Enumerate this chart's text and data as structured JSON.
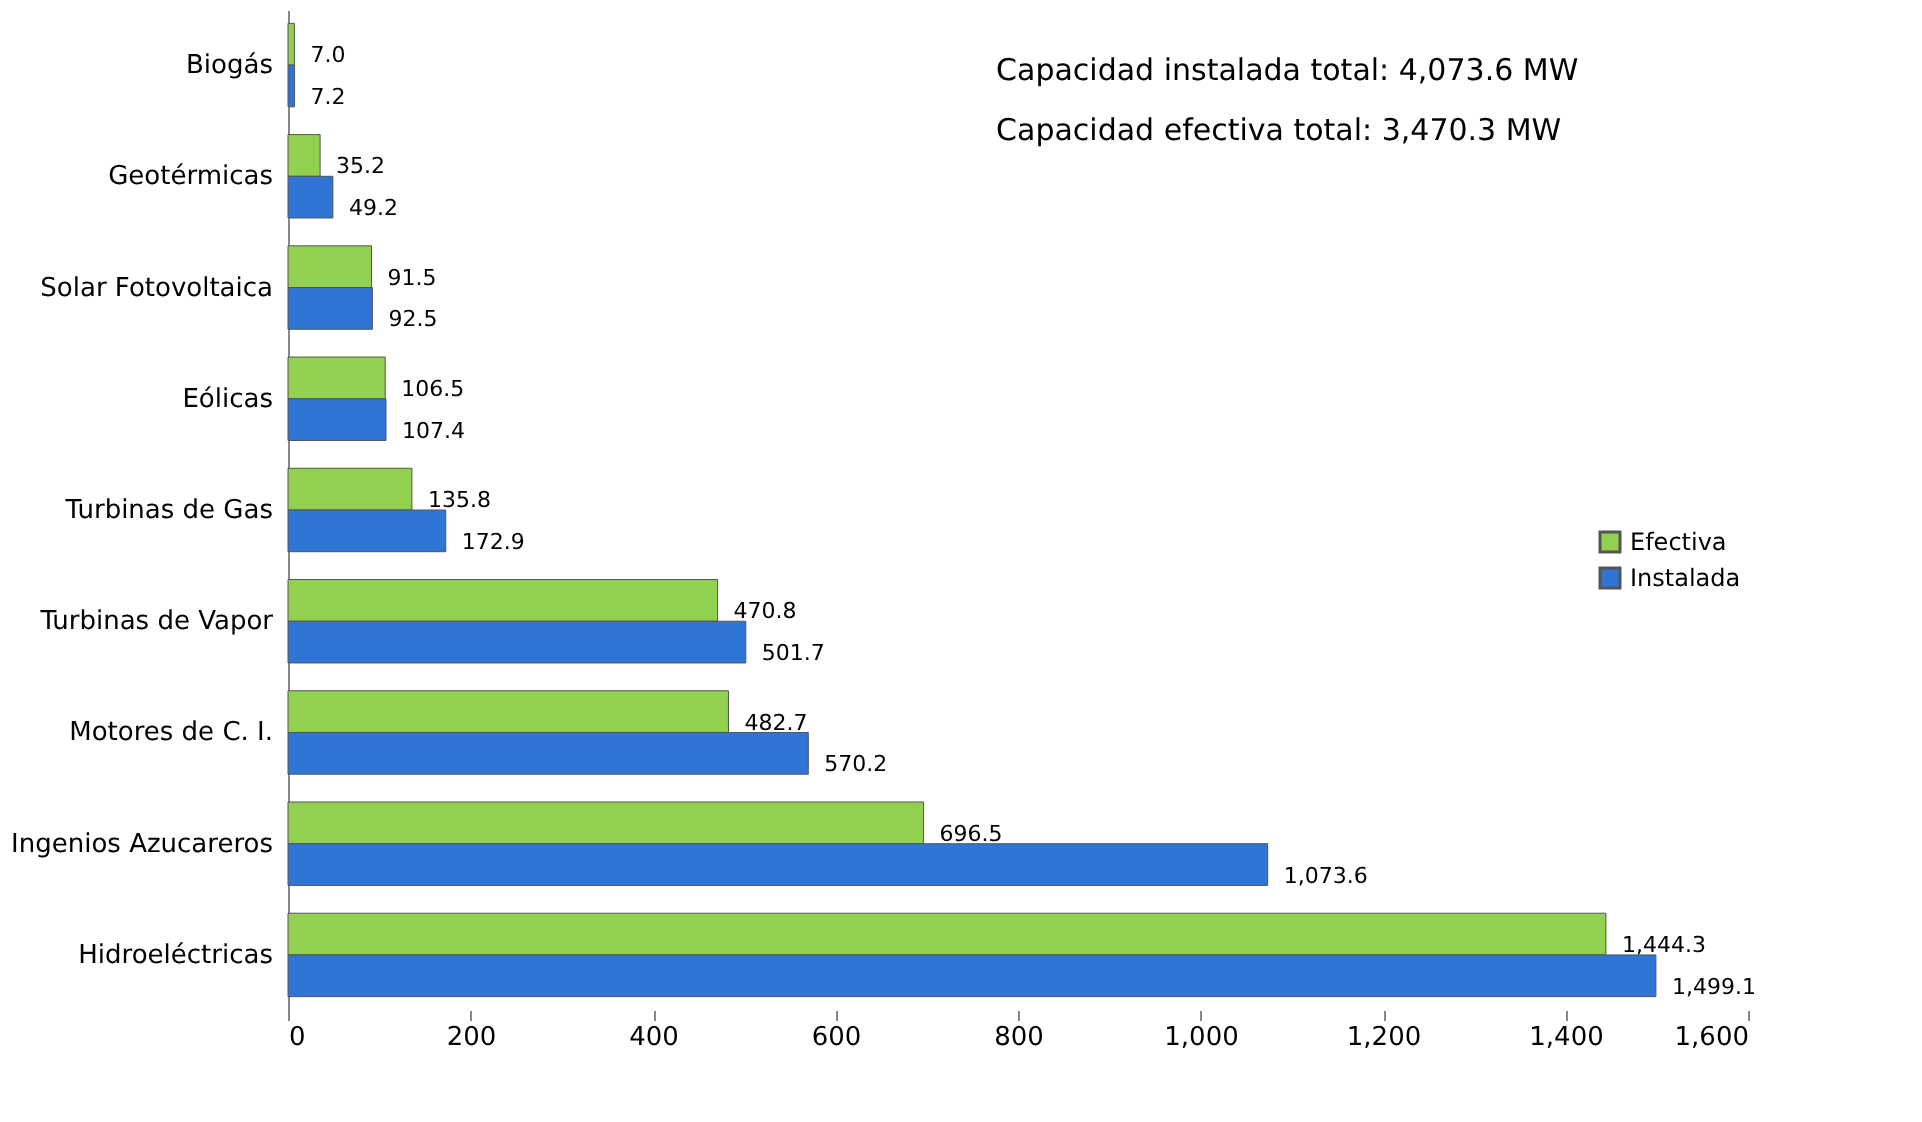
{
  "chart_data": {
    "type": "bar",
    "orientation": "horizontal",
    "categories": [
      "Biogás",
      "Geotérmicas",
      "Solar Fotovoltaica",
      "Eólicas",
      "Turbinas de Gas",
      "Turbinas de Vapor",
      "Motores de C. I.",
      "Ingenios Azucareros",
      "Hidroeléctricas"
    ],
    "series": [
      {
        "name": "Efectiva",
        "color": "#92d050",
        "values": [
          7.0,
          35.2,
          91.5,
          106.5,
          135.8,
          470.8,
          482.7,
          696.5,
          1444.3
        ],
        "value_labels": [
          "7.0",
          "35.2",
          "91.5",
          "106.5",
          "135.8",
          "470.8",
          "482.7",
          "696.5",
          "1,444.3"
        ]
      },
      {
        "name": "Instalada",
        "color": "#2e75d6",
        "values": [
          7.2,
          49.2,
          92.5,
          107.4,
          172.9,
          501.7,
          570.2,
          1073.6,
          1499.1
        ],
        "value_labels": [
          "7.2",
          "49.2",
          "92.5",
          "107.4",
          "172.9",
          "501.7",
          "570.2",
          "1,073.6",
          "1,499.1"
        ]
      }
    ],
    "xlim": [
      0,
      1600
    ],
    "xticks": [
      0,
      200,
      400,
      600,
      800,
      {
        "value": 1000,
        "label": "1,000"
      },
      {
        "value": 1200,
        "label": "1,200"
      },
      {
        "value": 1400,
        "label": "1,400"
      },
      {
        "value": 1600,
        "label": "1,600"
      }
    ],
    "annotations": [
      "Capacidad instalada total: 4,073.6 MW",
      "Capacidad efectiva total: 3,470.3 MW"
    ],
    "legend": "right",
    "grid": false
  }
}
